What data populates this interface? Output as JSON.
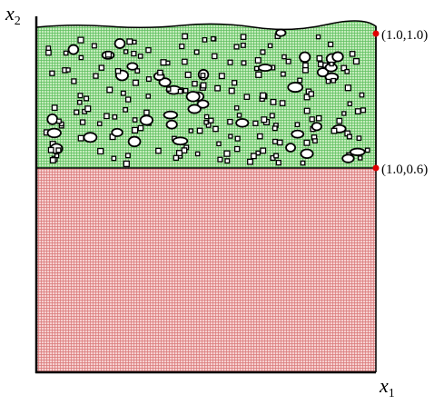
{
  "axes": {
    "y_label": {
      "base": "x",
      "sub": "2"
    },
    "x_label": {
      "base": "x",
      "sub": "1"
    }
  },
  "points": [
    {
      "label": "(1.0,1.0)"
    },
    {
      "label": "(1.0,0.6)"
    }
  ]
}
